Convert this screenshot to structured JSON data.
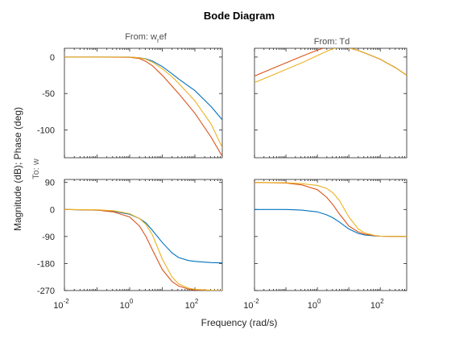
{
  "title": "Bode Diagram",
  "xlabel": "Frequency (rad/s)",
  "ylabel": "Magnitude (dB); Phase (deg)",
  "output_label": "To: w",
  "columns": [
    {
      "title_main": "From: w",
      "title_sub": "r",
      "title_tail": "ef"
    },
    {
      "title_main": "From: Td",
      "title_sub": "",
      "title_tail": ""
    }
  ],
  "colors": {
    "series1": "#0072BD",
    "series2": "#D95319",
    "series3": "#EDB120"
  },
  "x_ticks": [
    {
      "base": "10",
      "exp": "-2",
      "value": -2
    },
    {
      "base": "10",
      "exp": "0",
      "value": 0
    },
    {
      "base": "10",
      "exp": "2",
      "value": 2
    }
  ],
  "chart_data": {
    "type": "line",
    "xscale": "log",
    "xlim": [
      -2,
      2.84
    ],
    "panels": [
      {
        "id": "mag-wref",
        "row": "magnitude",
        "col": 0,
        "ylim": [
          -138,
          12
        ],
        "yticks": [
          {
            "label": "0",
            "value": 0
          },
          {
            "label": "-50",
            "value": -50
          },
          {
            "label": "-100",
            "value": -100
          }
        ],
        "series": [
          {
            "color": "#0072BD",
            "x": [
              -2,
              -1,
              0,
              0.3,
              0.5,
              0.7,
              1,
              1.3,
              1.5,
              2,
              2.5,
              2.84
            ],
            "y": [
              0,
              0,
              0,
              -1,
              -2.5,
              -5.5,
              -13,
              -23,
              -30,
              -46,
              -68,
              -86
            ]
          },
          {
            "color": "#D95319",
            "x": [
              -2,
              -1,
              0,
              0.3,
              0.5,
              0.7,
              1,
              1.3,
              1.5,
              2,
              2.5,
              2.84
            ],
            "y": [
              0,
              0,
              -0.3,
              -2,
              -6,
              -12,
              -25,
              -40,
              -50,
              -77,
              -110,
              -136
            ]
          },
          {
            "color": "#EDB120",
            "x": [
              -2,
              -1,
              0,
              0.3,
              0.5,
              0.7,
              1,
              1.3,
              1.5,
              2,
              2.5,
              2.84
            ],
            "y": [
              0,
              0,
              0,
              -1,
              -3,
              -7,
              -16,
              -27,
              -36,
              -60,
              -92,
              -124
            ]
          }
        ]
      },
      {
        "id": "mag-td",
        "row": "magnitude",
        "col": 1,
        "ylim": [
          -138,
          12
        ],
        "yticks": [],
        "series": [
          {
            "color": "#0072BD",
            "x": [
              -2,
              -1,
              -0.5,
              0,
              0.3,
              0.5,
              0.7,
              1,
              1.3,
              1.6,
              2,
              2.5,
              2.84
            ],
            "y": [
              14,
              14,
              14,
              14,
              14.5,
              14.8,
              14.3,
              12.5,
              9,
              4,
              -3,
              -15,
              -25
            ]
          },
          {
            "color": "#D95319",
            "x": [
              -2,
              -1.5,
              -1,
              -0.5,
              0,
              0.3,
              0.5,
              0.7,
              1,
              1.3,
              1.6,
              2,
              2.5,
              2.84
            ],
            "y": [
              -26,
              -17,
              -8,
              1,
              9.5,
              13.5,
              15,
              14.5,
              12.5,
              9,
              4,
              -3,
              -15,
              -25
            ]
          },
          {
            "color": "#EDB120",
            "x": [
              -2,
              -1.5,
              -1,
              -0.5,
              0,
              0.3,
              0.5,
              0.7,
              1,
              1.3,
              1.6,
              2,
              2.5,
              2.84
            ],
            "y": [
              -35,
              -26,
              -17,
              -8,
              2,
              8,
              11.5,
              13,
              12.5,
              9,
              4,
              -3,
              -15,
              -25
            ]
          }
        ]
      },
      {
        "id": "phase-wref",
        "row": "phase",
        "col": 0,
        "ylim": [
          -270,
          100
        ],
        "yticks": [
          {
            "label": "90",
            "value": 90
          },
          {
            "label": "0",
            "value": 0
          },
          {
            "label": "-90",
            "value": -90
          },
          {
            "label": "-180",
            "value": -180
          },
          {
            "label": "-270",
            "value": -270
          }
        ],
        "series": [
          {
            "color": "#0072BD",
            "x": [
              -2,
              -1,
              -0.5,
              0,
              0.3,
              0.5,
              0.7,
              1,
              1.3,
              1.5,
              1.8,
              2,
              2.5,
              2.84
            ],
            "y": [
              0,
              -2,
              -6,
              -16,
              -30,
              -45,
              -70,
              -110,
              -145,
              -160,
              -170,
              -173,
              -177,
              -178
            ]
          },
          {
            "color": "#D95319",
            "x": [
              -2,
              -1,
              -0.5,
              0,
              0.3,
              0.5,
              0.7,
              1,
              1.3,
              1.5,
              1.8,
              2,
              2.5,
              2.84
            ],
            "y": [
              0,
              -2,
              -8,
              -25,
              -55,
              -90,
              -135,
              -200,
              -240,
              -255,
              -265,
              -268,
              -270,
              -270
            ]
          },
          {
            "color": "#EDB120",
            "x": [
              -2,
              -1,
              -0.5,
              0,
              0.3,
              0.5,
              0.7,
              1,
              1.3,
              1.5,
              1.8,
              2,
              2.5,
              2.84
            ],
            "y": [
              0,
              -1,
              -4,
              -14,
              -30,
              -50,
              -85,
              -165,
              -225,
              -248,
              -262,
              -266,
              -269,
              -270
            ]
          }
        ]
      },
      {
        "id": "phase-td",
        "row": "phase",
        "col": 1,
        "ylim": [
          -270,
          100
        ],
        "yticks": [],
        "series": [
          {
            "color": "#0072BD",
            "x": [
              -2,
              -1,
              -0.5,
              0,
              0.3,
              0.5,
              0.7,
              1,
              1.3,
              1.5,
              1.8,
              2,
              2.5,
              2.84
            ],
            "y": [
              0,
              0,
              -2,
              -8,
              -18,
              -28,
              -42,
              -65,
              -80,
              -85,
              -88,
              -89,
              -90,
              -90
            ]
          },
          {
            "color": "#D95319",
            "x": [
              -2,
              -1,
              -0.5,
              0,
              0.3,
              0.5,
              0.7,
              1,
              1.3,
              1.5,
              1.8,
              2,
              2.5,
              2.84
            ],
            "y": [
              90,
              88,
              82,
              66,
              40,
              15,
              -15,
              -55,
              -75,
              -82,
              -87,
              -89,
              -90,
              -90
            ]
          },
          {
            "color": "#EDB120",
            "x": [
              -2,
              -1,
              -0.5,
              0,
              0.3,
              0.5,
              0.7,
              1,
              1.3,
              1.5,
              1.8,
              2,
              2.5,
              2.84
            ],
            "y": [
              90,
              89,
              86,
              80,
              70,
              55,
              30,
              -25,
              -65,
              -78,
              -86,
              -89,
              -90,
              -90
            ]
          }
        ]
      }
    ]
  }
}
